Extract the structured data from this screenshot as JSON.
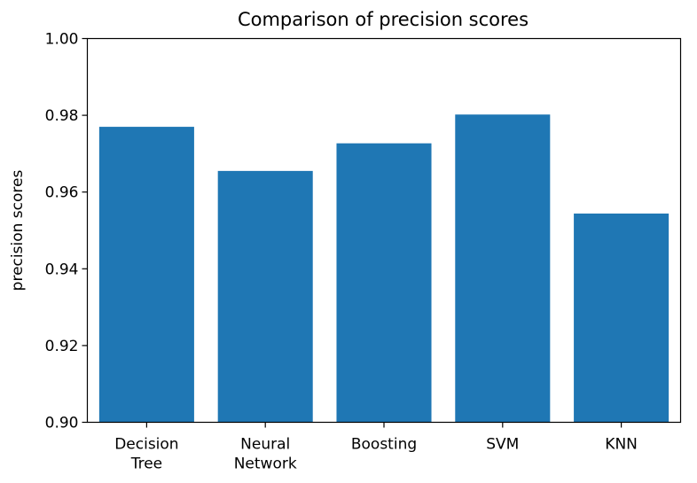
{
  "chart_data": {
    "type": "bar",
    "title": "Comparison of precision scores",
    "xlabel": "",
    "ylabel": "precision scores",
    "categories": [
      [
        "Decision",
        "Tree"
      ],
      [
        "Neural",
        "Network"
      ],
      [
        "Boosting"
      ],
      [
        "SVM"
      ],
      [
        "KNN"
      ]
    ],
    "values": [
      0.977,
      0.9655,
      0.9727,
      0.9802,
      0.9544
    ],
    "ylim": [
      0.9,
      1.0
    ],
    "yticks": [
      "0.90",
      "0.92",
      "0.94",
      "0.96",
      "0.98",
      "1.00"
    ],
    "bar_color": "#1f77b4",
    "grid": false,
    "legend": "none"
  }
}
